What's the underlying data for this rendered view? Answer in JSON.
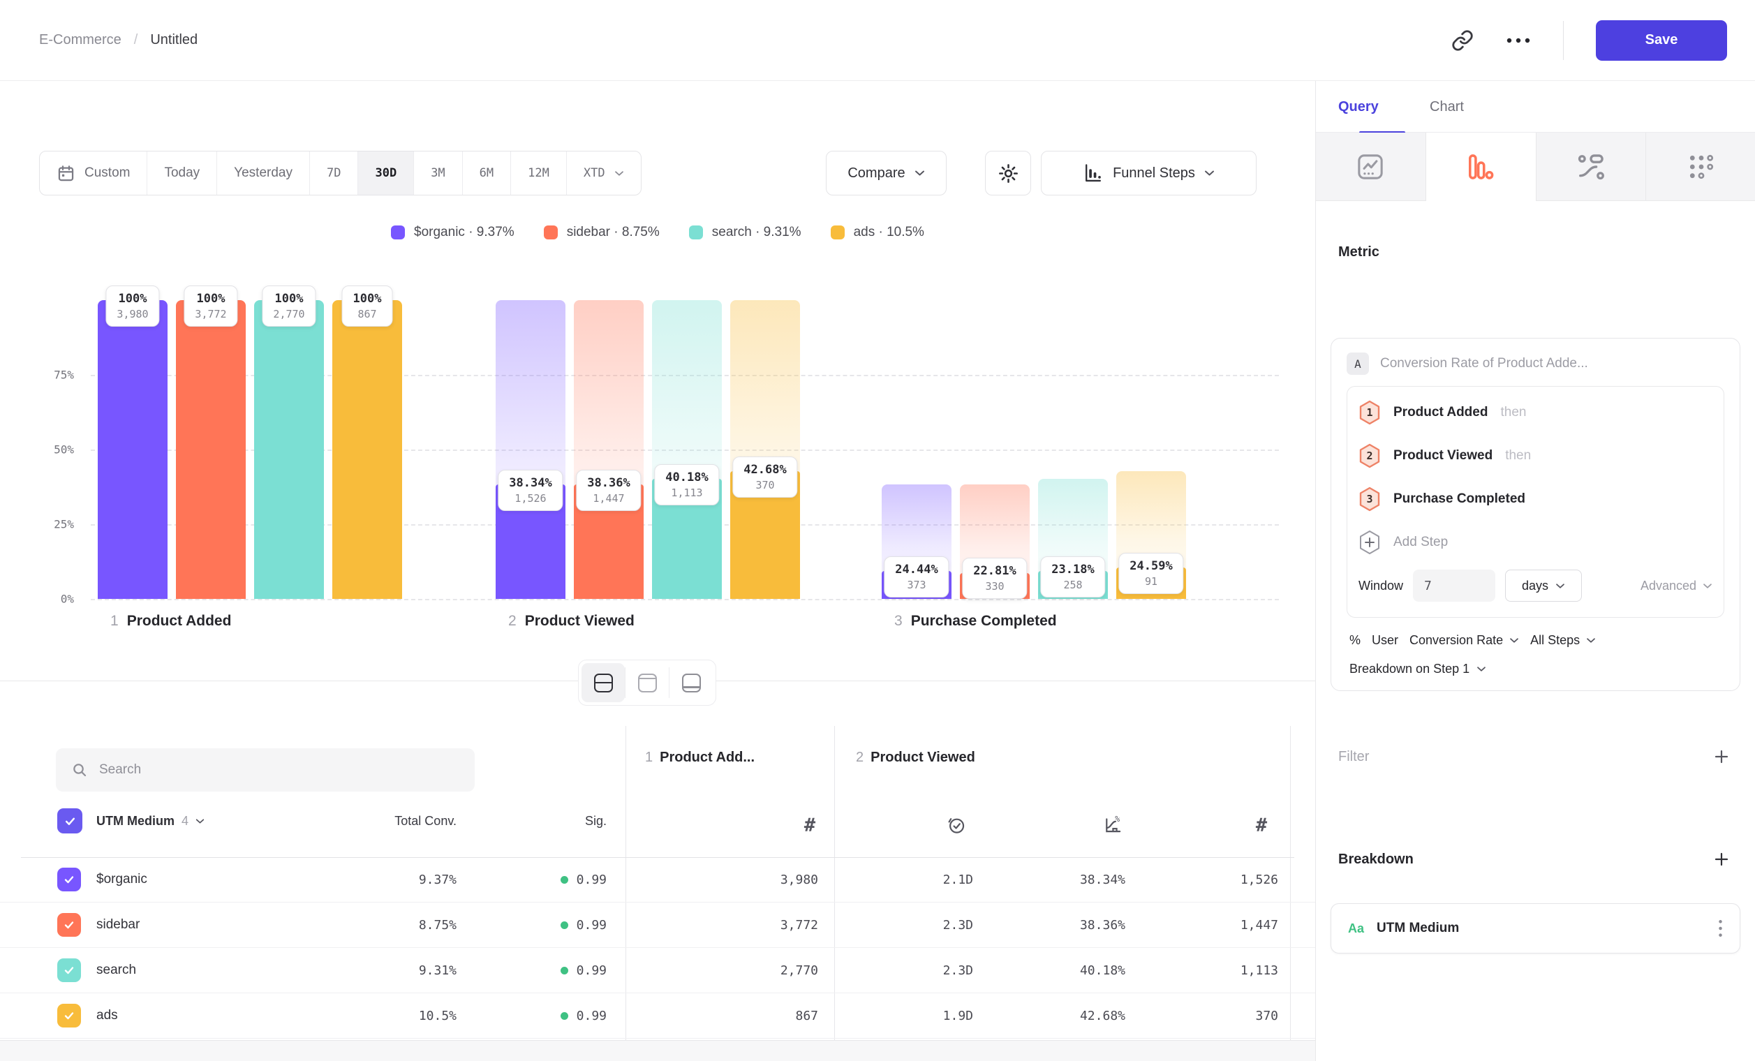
{
  "header": {
    "breadcrumb": {
      "section": "E-Commerce",
      "separator": "/",
      "page": "Untitled"
    },
    "actions": {
      "save_label": "Save"
    }
  },
  "toolbar": {
    "date_ranges": [
      {
        "label": "Custom",
        "icon": "calendar"
      },
      {
        "label": "Today"
      },
      {
        "label": "Yesterday"
      },
      {
        "label": "7D",
        "mono": true
      },
      {
        "label": "30D",
        "mono": true,
        "selected": true
      },
      {
        "label": "3M",
        "mono": true
      },
      {
        "label": "6M",
        "mono": true
      },
      {
        "label": "12M",
        "mono": true
      },
      {
        "label": "XTD",
        "mono": true,
        "chevron": true
      }
    ],
    "compare_label": "Compare",
    "funnel_steps_label": "Funnel Steps"
  },
  "chart_data": {
    "type": "funnel",
    "title": "",
    "y_axis": {
      "ticks": [
        {
          "pct": 75,
          "label": "75%"
        },
        {
          "pct": 50,
          "label": "50%"
        },
        {
          "pct": 25,
          "label": "25%"
        },
        {
          "pct": 0,
          "label": "0%"
        }
      ],
      "max_pct": 100
    },
    "step_names": [
      {
        "num": "1",
        "name": "Product Added"
      },
      {
        "num": "2",
        "name": "Product Viewed"
      },
      {
        "num": "3",
        "name": "Purchase Completed"
      }
    ],
    "series": [
      {
        "name": "$organic",
        "color": "#7856FF",
        "total_conversion": "9.37%",
        "steps": [
          {
            "pct": 100,
            "label": "100%",
            "count": "3,980"
          },
          {
            "pct": 38.34,
            "label": "38.34%",
            "count": "1,526"
          },
          {
            "pct": 9.37,
            "label": "24.44%",
            "count": "373"
          }
        ]
      },
      {
        "name": "sidebar",
        "color": "#FF7557",
        "total_conversion": "8.75%",
        "steps": [
          {
            "pct": 100,
            "label": "100%",
            "count": "3,772"
          },
          {
            "pct": 38.36,
            "label": "38.36%",
            "count": "1,447"
          },
          {
            "pct": 8.75,
            "label": "22.81%",
            "count": "330"
          }
        ]
      },
      {
        "name": "search",
        "color": "#7BDFD3",
        "total_conversion": "9.31%",
        "steps": [
          {
            "pct": 100,
            "label": "100%",
            "count": "2,770"
          },
          {
            "pct": 40.18,
            "label": "40.18%",
            "count": "1,113"
          },
          {
            "pct": 9.31,
            "label": "23.18%",
            "count": "258"
          }
        ]
      },
      {
        "name": "ads",
        "color": "#F8BC3B",
        "total_conversion": "10.5%",
        "steps": [
          {
            "pct": 100,
            "label": "100%",
            "count": "867"
          },
          {
            "pct": 42.68,
            "label": "42.68%",
            "count": "370"
          },
          {
            "pct": 10.5,
            "label": "24.59%",
            "count": "91"
          }
        ]
      }
    ]
  },
  "view_toggle": {
    "options": [
      "split-view",
      "chart-view",
      "table-view"
    ],
    "selected": "split-view"
  },
  "table": {
    "search_placeholder": "Search",
    "header": {
      "group_label": "UTM Medium",
      "group_count": "4",
      "total_label": "Total Conv.",
      "sig_label": "Sig."
    },
    "step_columns": [
      {
        "num": "1",
        "name": "Product Add..."
      },
      {
        "num": "2",
        "name": "Product Viewed"
      }
    ],
    "sig_dot_color": "#3FC183",
    "rows": [
      {
        "name": "$organic",
        "color": "#7856FF",
        "total_conv": "9.37%",
        "sig": "0.99",
        "step1_count": "3,980",
        "step2_time": "2.1D",
        "step2_conv": "38.34%",
        "step2_count": "1,526"
      },
      {
        "name": "sidebar",
        "color": "#FF7557",
        "total_conv": "8.75%",
        "sig": "0.99",
        "step1_count": "3,772",
        "step2_time": "2.3D",
        "step2_conv": "38.36%",
        "step2_count": "1,447"
      },
      {
        "name": "search",
        "color": "#7BDFD3",
        "total_conv": "9.31%",
        "sig": "0.99",
        "step1_count": "2,770",
        "step2_time": "2.3D",
        "step2_conv": "40.18%",
        "step2_count": "1,113"
      },
      {
        "name": "ads",
        "color": "#F8BC3B",
        "total_conv": "10.5%",
        "sig": "0.99",
        "step1_count": "867",
        "step2_time": "1.9D",
        "step2_conv": "42.68%",
        "step2_count": "370"
      }
    ]
  },
  "panel": {
    "tabs": [
      {
        "label": "Query",
        "active": true
      },
      {
        "label": "Chart",
        "active": false
      }
    ],
    "chart_types": [
      "insights",
      "funnel",
      "flows",
      "retention"
    ],
    "selected_chart_type": "funnel",
    "metric_heading": "Metric",
    "metric": {
      "letter": "A",
      "title": "Conversion Rate of Product Adde...",
      "steps": [
        {
          "num": "1",
          "name": "Product Added",
          "suffix": "then"
        },
        {
          "num": "2",
          "name": "Product Viewed",
          "suffix": "then"
        },
        {
          "num": "3",
          "name": "Purchase Completed",
          "suffix": ""
        }
      ],
      "add_step_label": "Add Step",
      "window": {
        "label": "Window",
        "value": "7",
        "unit": "days",
        "advanced_label": "Advanced"
      },
      "conversion": {
        "symbol": "%",
        "entity": "User",
        "measure": "Conversion Rate",
        "scope": "All Steps"
      },
      "breakdown_on_label": "Breakdown on Step 1"
    },
    "filter": {
      "label": "Filter"
    },
    "breakdown": {
      "label": "Breakdown",
      "items": [
        {
          "prefix": "Aa",
          "name": "UTM Medium"
        }
      ]
    },
    "accent_color": "#4B42DD"
  }
}
